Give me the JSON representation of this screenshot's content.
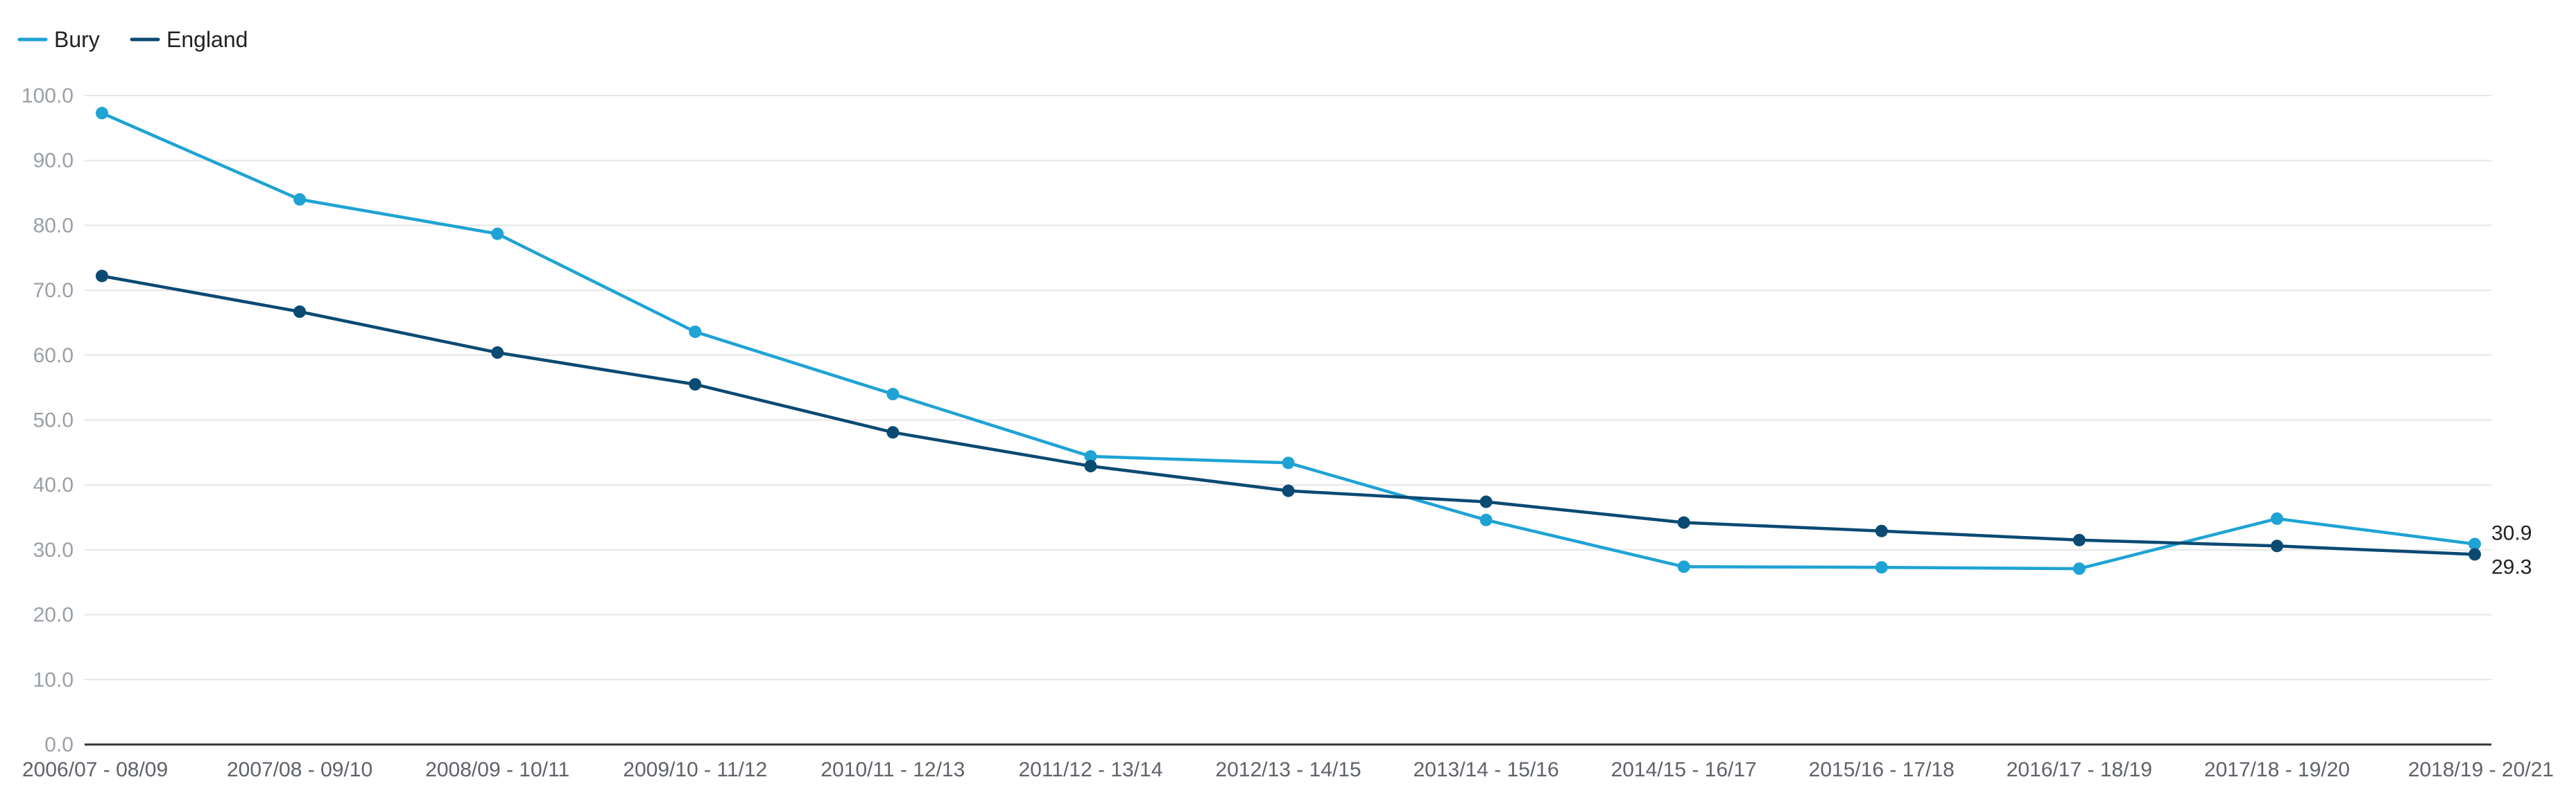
{
  "chart_data": {
    "type": "line",
    "title": "",
    "xlabel": "",
    "ylabel": "",
    "ylim": [
      0,
      100
    ],
    "yticks": [
      "0.0",
      "10.0",
      "20.0",
      "30.0",
      "40.0",
      "50.0",
      "60.0",
      "70.0",
      "80.0",
      "90.0",
      "100.0"
    ],
    "grid": true,
    "legend_position": "top-left",
    "categories": [
      "2006/07 - 08/09",
      "2007/08 - 09/10",
      "2008/09 - 10/11",
      "2009/10 - 11/12",
      "2010/11 - 12/13",
      "2011/12 - 13/14",
      "2012/13 - 14/15",
      "2013/14 - 15/16",
      "2014/15 - 16/17",
      "2015/16 - 17/18",
      "2016/17 - 18/19",
      "2017/18 - 19/20",
      "2018/19 - 20/21"
    ],
    "series": [
      {
        "name": "Bury",
        "color": "#1fa3d4",
        "values": [
          97.3,
          84.0,
          78.7,
          63.6,
          54.0,
          44.4,
          43.4,
          34.6,
          27.4,
          27.3,
          27.1,
          34.8,
          30.9
        ],
        "end_label": "30.9"
      },
      {
        "name": "England",
        "color": "#0b4a73",
        "values": [
          72.2,
          66.7,
          60.4,
          55.5,
          48.1,
          42.9,
          39.1,
          37.4,
          34.2,
          32.9,
          31.5,
          30.6,
          29.3
        ],
        "end_label": "29.3"
      }
    ]
  }
}
